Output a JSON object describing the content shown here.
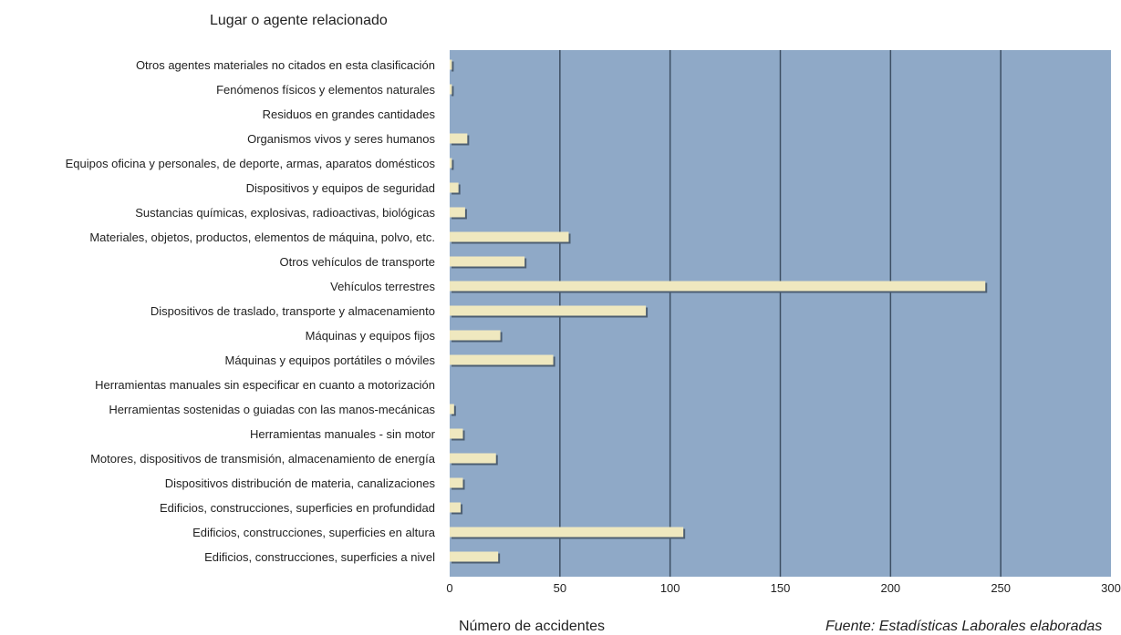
{
  "chart_data": {
    "type": "bar",
    "orientation": "horizontal",
    "title": "Lugar o agente relacionado",
    "xlabel": "Número de accidentes",
    "source": "Fuente: Estadísticas Laborales elaboradas",
    "xlim": [
      0,
      300
    ],
    "xticks": [
      0,
      50,
      100,
      150,
      200,
      250,
      300
    ],
    "grid": true,
    "categories": [
      "Otros agentes materiales no citados en esta clasificación",
      "Fenómenos físicos y elementos naturales",
      "Residuos en grandes cantidades",
      "Organismos vivos y seres humanos",
      "Equipos oficina y personales, de deporte, armas, aparatos domésticos",
      "Dispositivos y equipos de seguridad",
      "Sustancias químicas, explosivas, radioactivas, biológicas",
      "Materiales, objetos, productos, elementos de máquina, polvo, etc.",
      "Otros vehículos de transporte",
      "Vehículos terrestres",
      "Dispositivos de traslado, transporte y almacenamiento",
      "Máquinas y equipos fijos",
      "Máquinas y equipos portátiles o móviles",
      "Herramientas manuales sin especificar en cuanto a motorización",
      "Herramientas sostenidas o guiadas con las manos-mecánicas",
      "Herramientas manuales - sin motor",
      "Motores, dispositivos de transmisión, almacenamiento de energía",
      "Dispositivos distribución de materia, canalizaciones",
      "Edificios, construcciones, superficies en profundidad",
      "Edificios, construcciones, superficies en altura",
      "Edificios, construcciones, superficies a nivel"
    ],
    "values": [
      1,
      1,
      0,
      8,
      1,
      4,
      7,
      54,
      34,
      243,
      89,
      23,
      47,
      0,
      2,
      6,
      21,
      6,
      5,
      106,
      22
    ],
    "colors": {
      "plot_background": "#8fa9c7",
      "gridline": "#3d4f63",
      "bar_fill": "#efe8bf",
      "bar_shadow": "#4c5e72"
    }
  }
}
